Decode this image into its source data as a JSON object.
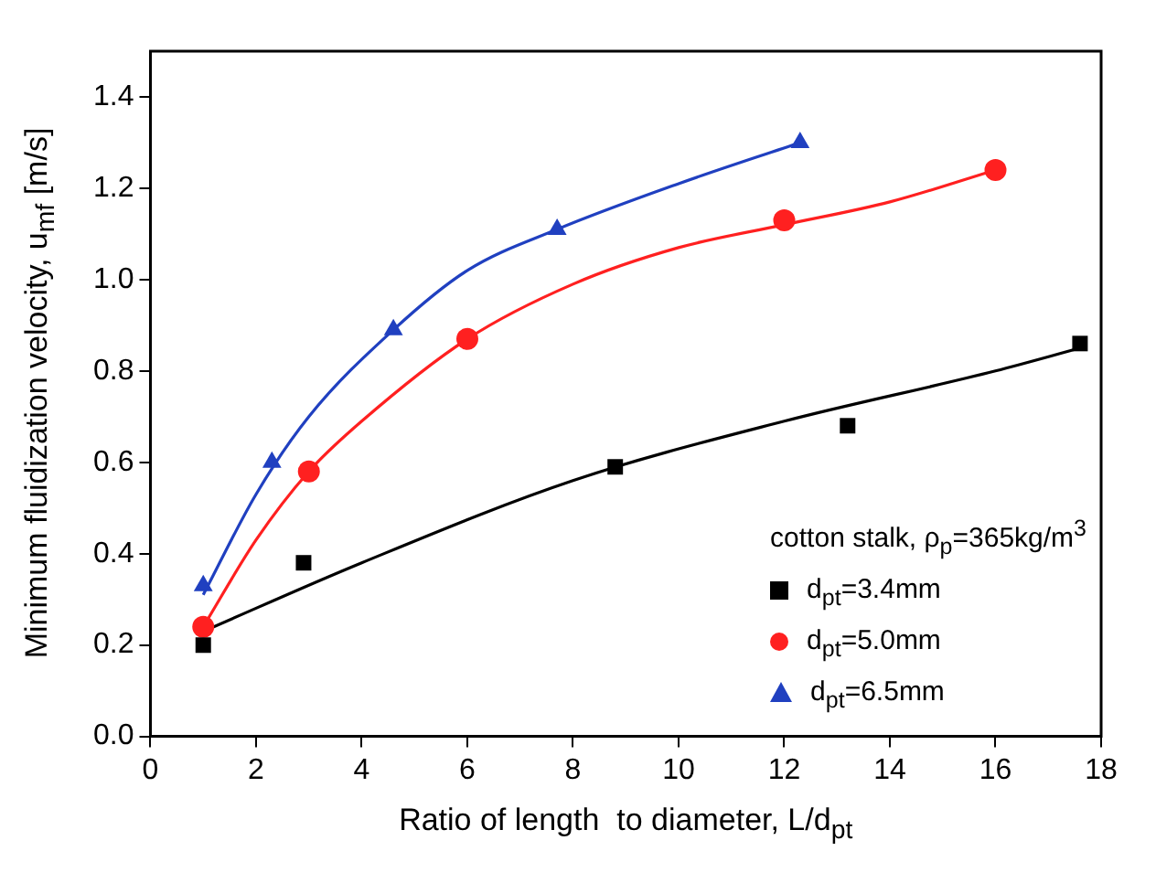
{
  "chart_data": {
    "type": "scatter",
    "xlabel": "Ratio of length  to diameter, L/d$_{pt}$",
    "ylabel": "Minimum fluidization velocity, u$_{mf}$ [m/s]",
    "legend_title": "cotton stalk, ρ$_{p}$=365kg/m$^{3}$",
    "legend": "bottom right",
    "grid": false,
    "xlim": [
      0,
      18
    ],
    "xticks": [
      0,
      2,
      4,
      6,
      8,
      10,
      12,
      14,
      16,
      18
    ],
    "ylim": [
      0,
      1.5
    ],
    "yticks": [
      {
        "value": 0,
        "label": "0.0"
      },
      {
        "value": 0.2,
        "label": "0.2"
      },
      {
        "value": 0.4,
        "label": "0.4"
      },
      {
        "value": 0.6,
        "label": "0.6"
      },
      {
        "value": 0.8,
        "label": "0.8"
      },
      {
        "value": 1,
        "label": "1.0"
      },
      {
        "value": 1.2,
        "label": "1.2"
      },
      {
        "value": 1.4,
        "label": "1.4"
      }
    ],
    "series": [
      {
        "type": "scatter",
        "name": "d$_{pt}$=3.4mm",
        "color": "#000000",
        "marker": "square",
        "x": [
          1,
          2.9,
          8.8,
          13.2,
          17.6
        ],
        "values": [
          0.2,
          0.38,
          0.59,
          0.68,
          0.86
        ]
      },
      {
        "type": "scatter",
        "name": "d$_{pt}$=5.0mm",
        "color": "#ff2020",
        "marker": "circle",
        "x": [
          1,
          3,
          6,
          12,
          16
        ],
        "values": [
          0.24,
          0.58,
          0.87,
          1.13,
          1.24
        ]
      },
      {
        "type": "scatter",
        "name": "d$_{pt}$=6.5mm",
        "color": "#2040c0",
        "marker": "triangle",
        "x": [
          1,
          2.3,
          4.6,
          7.7,
          12.3
        ],
        "values": [
          0.33,
          0.6,
          0.89,
          1.11,
          1.3
        ]
      },
      {
        "type": "line",
        "color": "#000000",
        "marker": "none",
        "x": [
          1,
          4,
          8,
          12,
          16,
          17.6
        ],
        "values": [
          0.23,
          0.38,
          0.56,
          0.69,
          0.8,
          0.85
        ]
      },
      {
        "type": "line",
        "color": "#ff2020",
        "marker": "none",
        "x": [
          1,
          2,
          3,
          4,
          6,
          8,
          10,
          12,
          14,
          16
        ],
        "values": [
          0.24,
          0.43,
          0.58,
          0.69,
          0.87,
          0.99,
          1.07,
          1.12,
          1.17,
          1.24
        ]
      },
      {
        "type": "line",
        "color": "#2040c0",
        "marker": "none",
        "x": [
          1,
          2,
          3,
          4.6,
          6,
          7.7,
          10,
          12.3
        ],
        "values": [
          0.31,
          0.53,
          0.7,
          0.89,
          1.02,
          1.11,
          1.21,
          1.3
        ]
      }
    ]
  }
}
